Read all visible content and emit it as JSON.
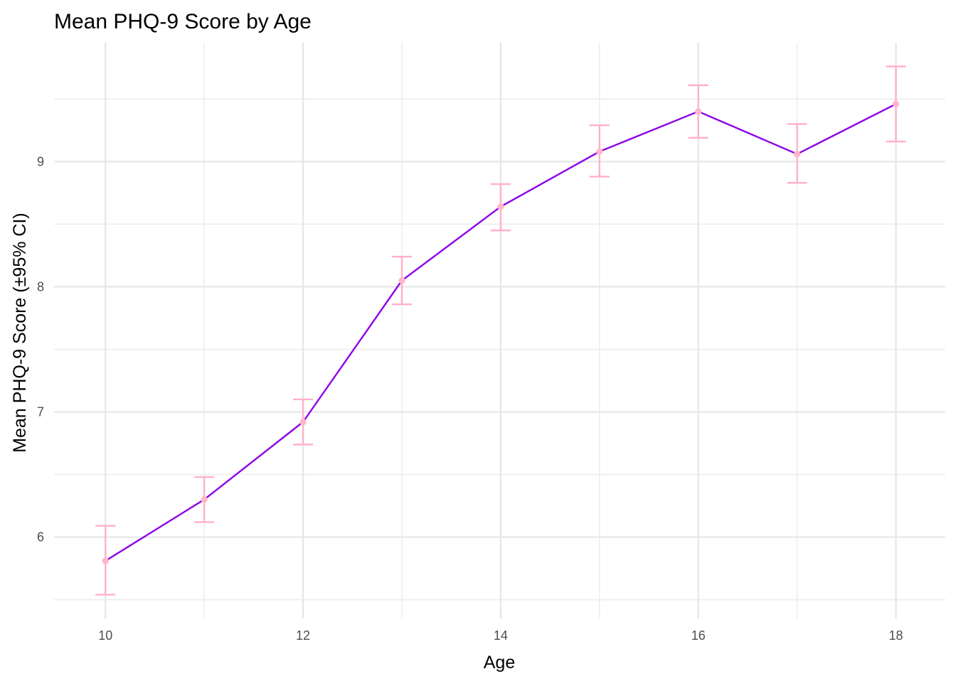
{
  "chart_data": {
    "type": "line",
    "title": "Mean PHQ-9 Score by Age",
    "xlabel": "Age",
    "ylabel": "Mean PHQ-9 Score (±95% CI)",
    "x": [
      10,
      11,
      12,
      13,
      14,
      15,
      16,
      17,
      18
    ],
    "series": [
      {
        "values": [
          5.81,
          6.3,
          6.92,
          8.05,
          8.64,
          9.08,
          9.4,
          9.06,
          9.46
        ],
        "ci_lower": [
          5.54,
          6.12,
          6.74,
          7.86,
          8.45,
          8.88,
          9.19,
          8.83,
          9.16
        ],
        "ci_upper": [
          6.09,
          6.48,
          7.1,
          8.24,
          8.82,
          9.29,
          9.61,
          9.3,
          9.76
        ]
      }
    ],
    "x_ticks": [
      10,
      12,
      14,
      16,
      18
    ],
    "y_ticks": [
      6,
      7,
      8,
      9
    ],
    "xlim": [
      9.48,
      18.5
    ],
    "ylim": [
      5.35,
      9.95
    ],
    "grid": true,
    "colors": {
      "line": "#8c00e8",
      "errorbar": "#ffb0c8",
      "point": "#ffb6c8",
      "grid": "#e6e6e6"
    }
  }
}
